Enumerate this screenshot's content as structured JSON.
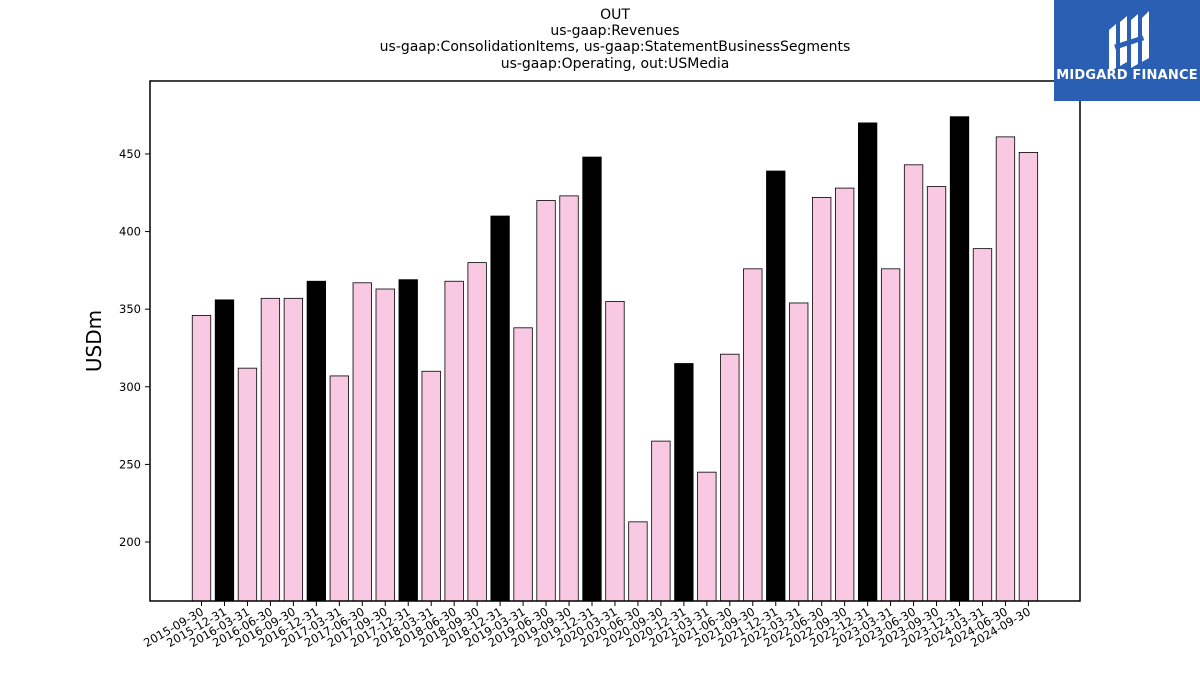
{
  "chart_data": {
    "type": "bar",
    "title_lines": [
      "OUT",
      "us-gaap:Revenues",
      "us-gaap:ConsolidationItems, us-gaap:StatementBusinessSegments",
      "us-gaap:Operating, out:USMedia"
    ],
    "ylabel": "USDm",
    "xlabel": "",
    "ylim": [
      162,
      497
    ],
    "yticks": [
      200,
      250,
      300,
      350,
      400,
      450
    ],
    "grid": false,
    "colors": {
      "regular": "#f9c9e3",
      "year_end": "#000000",
      "edge": "#000000"
    },
    "categories": [
      "2015-09-30",
      "2015-12-31",
      "2016-03-31",
      "2016-06-30",
      "2016-09-30",
      "2016-12-31",
      "2017-03-31",
      "2017-06-30",
      "2017-09-30",
      "2017-12-31",
      "2018-03-31",
      "2018-06-30",
      "2018-09-30",
      "2018-12-31",
      "2019-03-31",
      "2019-06-30",
      "2019-09-30",
      "2019-12-31",
      "2020-03-31",
      "2020-06-30",
      "2020-09-30",
      "2020-12-31",
      "2021-03-31",
      "2021-06-30",
      "2021-09-30",
      "2021-12-31",
      "2022-03-31",
      "2022-06-30",
      "2022-09-30",
      "2022-12-31",
      "2023-03-31",
      "2023-06-30",
      "2023-09-30",
      "2023-12-31",
      "2024-03-31",
      "2024-06-30",
      "2024-09-30"
    ],
    "values": [
      346,
      356,
      312,
      357,
      357,
      368,
      307,
      367,
      363,
      369,
      310,
      368,
      380,
      410,
      338,
      420,
      423,
      448,
      355,
      213,
      265,
      315,
      245,
      321,
      376,
      439,
      354,
      422,
      428,
      470,
      376,
      443,
      429,
      474,
      389,
      461,
      451
    ]
  },
  "logo": {
    "text": "MIDGARD FINANCE",
    "bg": "#2a5fb4"
  }
}
